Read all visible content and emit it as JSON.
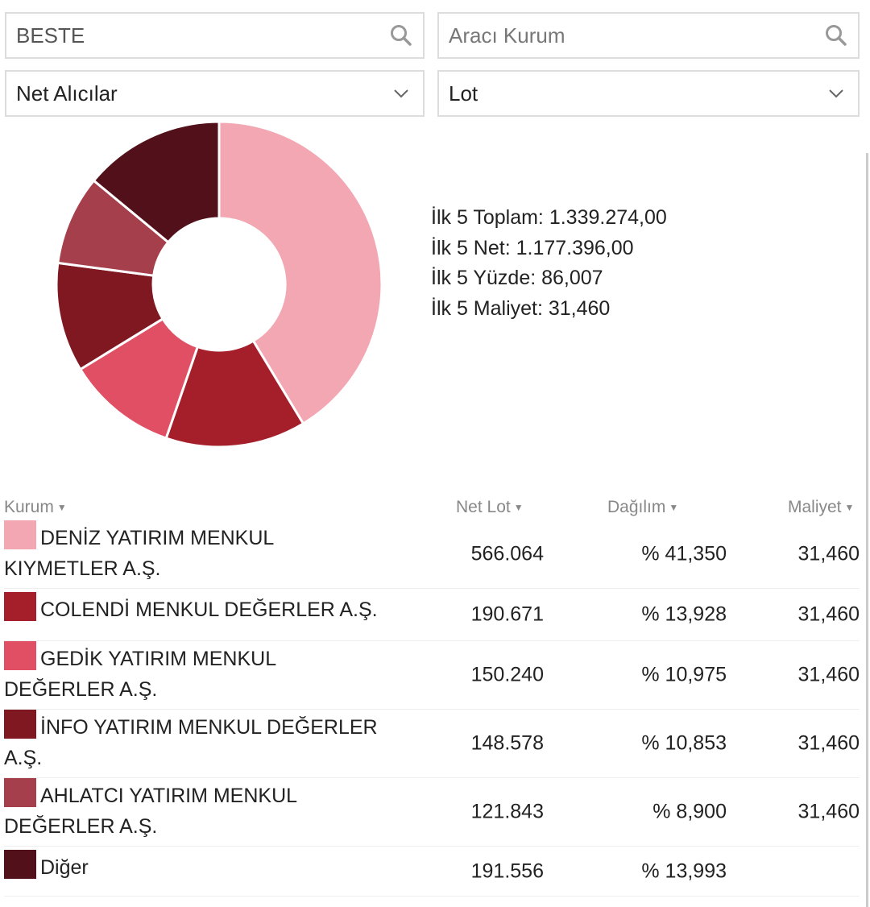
{
  "filters": {
    "stock_search": {
      "value": "BESTE",
      "icon": "search-icon"
    },
    "broker_search": {
      "placeholder": "Aracı Kurum",
      "icon": "search-icon"
    },
    "side_select": {
      "value": "Net Alıcılar",
      "icon": "chevron-down-icon"
    },
    "unit_select": {
      "value": "Lot",
      "icon": "chevron-down-icon"
    }
  },
  "summary": [
    "İlk 5 Toplam: 1.339.274,00",
    "İlk 5 Net: 1.177.396,00",
    "İlk 5 Yüzde: 86,007",
    "İlk 5 Maliyet: 31,460"
  ],
  "table": {
    "headers": [
      "Kurum",
      "Net Lot",
      "Dağılım",
      "Maliyet"
    ],
    "rows": [
      {
        "name": "DENİZ YATIRIM MENKUL KIYMETLER A.Ş.",
        "net_lot": "566.064",
        "dagilim": "% 41,350",
        "maliyet": "31,460",
        "color": "#f2a7b2"
      },
      {
        "name": "COLENDİ MENKUL DEĞERLER A.Ş.",
        "net_lot": "190.671",
        "dagilim": "% 13,928",
        "maliyet": "31,460",
        "color": "#a51f2b"
      },
      {
        "name": "GEDİK YATIRIM MENKUL DEĞERLER A.Ş.",
        "net_lot": "150.240",
        "dagilim": "% 10,975",
        "maliyet": "31,460",
        "color": "#e04f64"
      },
      {
        "name": "İNFO YATIRIM MENKUL DEĞERLER A.Ş.",
        "net_lot": "148.578",
        "dagilim": "% 10,853",
        "maliyet": "31,460",
        "color": "#7f1820"
      },
      {
        "name": "AHLATCI YATIRIM MENKUL DEĞERLER A.Ş.",
        "net_lot": "121.843",
        "dagilim": "% 8,900",
        "maliyet": "31,460",
        "color": "#a63f4c"
      },
      {
        "name": "Diğer",
        "net_lot": "191.556",
        "dagilim": "% 13,993",
        "maliyet": "",
        "color": "#52111a"
      }
    ]
  },
  "chart_data": {
    "type": "pie",
    "donut": true,
    "categories": [
      "DENİZ YATIRIM MENKUL KIYMETLER A.Ş.",
      "COLENDİ MENKUL DEĞERLER A.Ş.",
      "GEDİK YATIRIM MENKUL DEĞERLER A.Ş.",
      "İNFO YATIRIM MENKUL DEĞERLER A.Ş.",
      "AHLATCI YATIRIM MENKUL DEĞERLER A.Ş.",
      "Diğer"
    ],
    "values": [
      566064,
      190671,
      150240,
      148578,
      121843,
      191556
    ],
    "colors": [
      "#f2a7b2",
      "#a51f2b",
      "#e04f64",
      "#7f1820",
      "#a63f4c",
      "#52111a"
    ]
  }
}
